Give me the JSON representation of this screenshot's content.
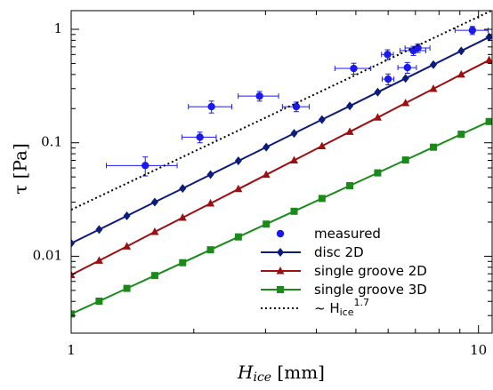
{
  "chart_data": {
    "type": "line",
    "xlabel": [
      "H",
      "ice",
      " [mm]"
    ],
    "ylabel": "τ [Pa]",
    "xscale": "log",
    "yscale": "log",
    "xlim": [
      1,
      10.8
    ],
    "ylim": [
      0.0021,
      1.46
    ],
    "xticks": [
      1,
      10
    ],
    "yticks": [
      0.01,
      0.1,
      1
    ],
    "xticks_minor": [
      2,
      3,
      4,
      5,
      6,
      7,
      8,
      9
    ],
    "yticks_minor": [
      0.003,
      0.004,
      0.005,
      0.006,
      0.007,
      0.008,
      0.009,
      0.02,
      0.03,
      0.04,
      0.05,
      0.06,
      0.07,
      0.08,
      0.09,
      0.2,
      0.3,
      0.4,
      0.5,
      0.6,
      0.7,
      0.8,
      0.9
    ],
    "legend": "lower right",
    "series": [
      {
        "name": [
          "measured"
        ],
        "color": "#1a1aee",
        "style": "scatter",
        "marker": "circle",
        "x": [
          1.52,
          2.07,
          2.21,
          2.9,
          3.57,
          4.94,
          5.98,
          6.0,
          6.69,
          6.92,
          7.1,
          9.66
        ],
        "values": [
          0.063,
          0.112,
          0.208,
          0.258,
          0.208,
          0.452,
          0.6,
          0.364,
          0.46,
          0.648,
          0.684,
          0.98
        ],
        "xerr": [
          0.3,
          0.2,
          0.27,
          0.33,
          0.27,
          0.5,
          0.2,
          0.2,
          0.35,
          0.5,
          0.5,
          0.9
        ],
        "yerr": [
          0.012,
          0.012,
          0.025,
          0.025,
          0.02,
          0.05,
          0.06,
          0.04,
          0.05,
          0.06,
          0.06,
          0.08
        ]
      },
      {
        "name": [
          "disc 2D"
        ],
        "color": "#0d1b7a",
        "style": "line",
        "marker": "diamond",
        "x": [
          1.0,
          1.171,
          1.37,
          1.604,
          1.878,
          2.198,
          2.573,
          3.012,
          3.526,
          4.128,
          4.831,
          5.656,
          6.62,
          7.75,
          9.07,
          10.62
        ],
        "values": [
          0.013,
          0.0172,
          0.0227,
          0.03,
          0.0396,
          0.0524,
          0.0693,
          0.0916,
          0.121,
          0.16,
          0.211,
          0.279,
          0.369,
          0.488,
          0.645,
          0.853
        ]
      },
      {
        "name": [
          "single groove 2D"
        ],
        "color": "#9b1010",
        "style": "line",
        "marker": "triangle",
        "x": [
          1.0,
          1.171,
          1.37,
          1.604,
          1.878,
          2.198,
          2.573,
          3.012,
          3.526,
          4.128,
          4.831,
          5.656,
          6.62,
          7.75,
          9.07,
          10.62
        ],
        "values": [
          0.00684,
          0.00914,
          0.0122,
          0.0164,
          0.0219,
          0.0292,
          0.0391,
          0.0523,
          0.07,
          0.0935,
          0.125,
          0.167,
          0.224,
          0.299,
          0.4,
          0.535
        ]
      },
      {
        "name": [
          "single groove 3D"
        ],
        "color": "#1a8a1a",
        "style": "line",
        "marker": "square",
        "x": [
          1.0,
          1.171,
          1.37,
          1.604,
          1.878,
          2.198,
          2.573,
          3.012,
          3.526,
          4.128,
          4.831,
          5.656,
          6.62,
          7.75,
          9.07,
          10.62
        ],
        "values": [
          0.0031,
          0.00402,
          0.00521,
          0.00676,
          0.00877,
          0.0114,
          0.0148,
          0.0192,
          0.0249,
          0.0323,
          0.0419,
          0.0543,
          0.0705,
          0.0914,
          0.119,
          0.154
        ]
      },
      {
        "name": [
          "~ H",
          "ice",
          "1.7"
        ],
        "color": "#000000",
        "style": "dotted",
        "x": [
          1,
          10.8
        ],
        "values": [
          0.0257,
          1.47
        ]
      }
    ]
  }
}
